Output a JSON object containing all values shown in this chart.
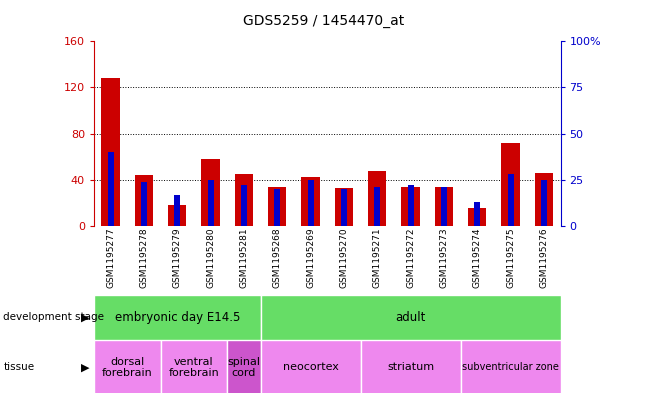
{
  "title": "GDS5259 / 1454470_at",
  "samples": [
    "GSM1195277",
    "GSM1195278",
    "GSM1195279",
    "GSM1195280",
    "GSM1195281",
    "GSM1195268",
    "GSM1195269",
    "GSM1195270",
    "GSM1195271",
    "GSM1195272",
    "GSM1195273",
    "GSM1195274",
    "GSM1195275",
    "GSM1195276"
  ],
  "count_values": [
    128,
    44,
    18,
    58,
    45,
    34,
    42,
    33,
    48,
    34,
    34,
    16,
    72,
    46
  ],
  "percentile_values": [
    40,
    24,
    17,
    25,
    22,
    20,
    25,
    20,
    21,
    22,
    21,
    13,
    28,
    25
  ],
  "left_ylim": [
    0,
    160
  ],
  "left_yticks": [
    0,
    40,
    80,
    120,
    160
  ],
  "right_ylim": [
    0,
    100
  ],
  "right_yticks": [
    0,
    25,
    50,
    75,
    100
  ],
  "left_ycolor": "#cc0000",
  "right_ycolor": "#0000cc",
  "bar_color_red": "#cc0000",
  "bar_color_blue": "#0000cc",
  "background_tick_area": "#c8c8c8",
  "development_stage_bg": "#66dd66",
  "tissue_bg": "#ee88ee",
  "spinal_cord_bg": "#cc55cc",
  "dev_stages": [
    {
      "label": "embryonic day E14.5",
      "start": 0,
      "end": 4
    },
    {
      "label": "adult",
      "start": 5,
      "end": 13
    }
  ],
  "tissues": [
    {
      "label": "dorsal\nforebrain",
      "start": 0,
      "end": 1,
      "color": "tissue_bg"
    },
    {
      "label": "ventral\nforebrain",
      "start": 2,
      "end": 3,
      "color": "tissue_bg"
    },
    {
      "label": "spinal\ncord",
      "start": 4,
      "end": 4,
      "color": "spinal_cord_bg"
    },
    {
      "label": "neocortex",
      "start": 5,
      "end": 7,
      "color": "tissue_bg"
    },
    {
      "label": "striatum",
      "start": 8,
      "end": 10,
      "color": "tissue_bg"
    },
    {
      "label": "subventricular zone",
      "start": 11,
      "end": 13,
      "color": "tissue_bg"
    }
  ],
  "n_samples": 14
}
